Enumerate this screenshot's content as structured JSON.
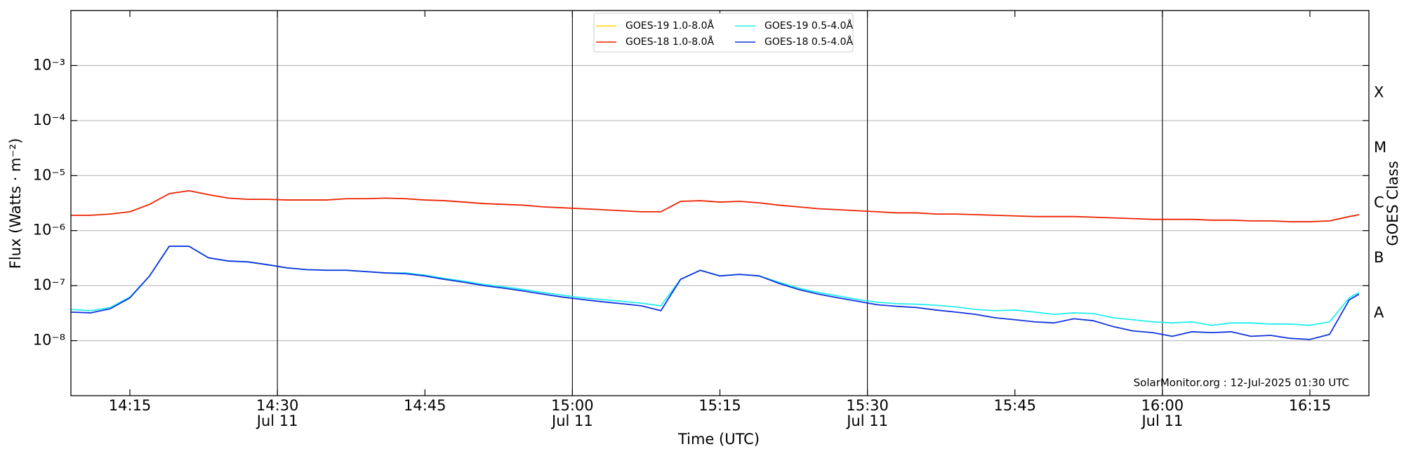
{
  "chart_data": {
    "type": "line",
    "ylabel": "Flux (Watts · m⁻²)",
    "xlabel": "Time (UTC)",
    "y2label": "GOES Class",
    "annotation": "SolarMonitor.org : 12-Jul-2025 01:30 UTC",
    "log_scale": true,
    "grid": true,
    "legend": "upper center",
    "x": [
      "14:09",
      "14:11",
      "14:13",
      "14:15",
      "14:17",
      "14:19",
      "14:21",
      "14:23",
      "14:25",
      "14:27",
      "14:29",
      "14:31",
      "14:33",
      "14:35",
      "14:37",
      "14:39",
      "14:41",
      "14:43",
      "14:45",
      "14:47",
      "14:49",
      "14:51",
      "14:53",
      "14:55",
      "14:57",
      "14:59",
      "15:01",
      "15:03",
      "15:05",
      "15:07",
      "15:09",
      "15:11",
      "15:13",
      "15:15",
      "15:17",
      "15:19",
      "15:21",
      "15:23",
      "15:25",
      "15:27",
      "15:29",
      "15:31",
      "15:33",
      "15:35",
      "15:37",
      "15:39",
      "15:41",
      "15:43",
      "15:45",
      "15:47",
      "15:49",
      "15:51",
      "15:53",
      "15:55",
      "15:57",
      "15:59",
      "16:01",
      "16:03",
      "16:05",
      "16:07",
      "16:09",
      "16:11",
      "16:13",
      "16:15",
      "16:17",
      "16:19",
      "16:20"
    ],
    "xlim": [
      "14:09",
      "16:21"
    ],
    "xticks": [
      "14:15",
      {
        "value": "14:30",
        "label": "14:30",
        "date": "Jul 11"
      },
      "14:45",
      {
        "value": "15:00",
        "label": "15:00",
        "date": "Jul 11"
      },
      "15:15",
      {
        "value": "15:30",
        "label": "15:30",
        "date": "Jul 11"
      },
      "15:45",
      {
        "value": "16:00",
        "label": "16:00",
        "date": "Jul 11"
      },
      "16:15"
    ],
    "ylim": [
      1e-09,
      0.01
    ],
    "yticks": [
      {
        "value": 1e-08,
        "label": "10⁻⁸"
      },
      {
        "value": 1e-07,
        "label": "10⁻⁷"
      },
      {
        "value": 1e-06,
        "label": "10⁻⁶"
      },
      {
        "value": 1e-05,
        "label": "10⁻⁵"
      },
      {
        "value": 0.0001,
        "label": "10⁻⁴"
      },
      {
        "value": 0.001,
        "label": "10⁻³"
      }
    ],
    "y2lim": [
      1e-09,
      0.01
    ],
    "y2ticks": [
      {
        "value": 3.16e-08,
        "label": "A"
      },
      {
        "value": 3.16e-07,
        "label": "B"
      },
      {
        "value": 3.16e-06,
        "label": "C"
      },
      {
        "value": 3.16e-05,
        "label": "M"
      },
      {
        "value": 0.000316,
        "label": "X"
      }
    ],
    "series": [
      {
        "name": "GOES-19 1.0-8.0Å",
        "color": "#ffd700",
        "values": [
          null,
          null,
          null,
          null,
          null,
          null,
          null,
          null,
          null,
          null,
          null,
          null,
          null,
          null,
          null,
          null,
          null,
          null,
          null,
          null,
          null,
          null,
          null,
          null,
          null,
          null,
          null,
          null,
          null,
          null,
          null,
          null,
          null,
          null,
          null,
          null,
          null,
          null,
          null,
          null,
          null,
          null,
          null,
          null,
          null,
          null,
          null,
          null,
          null,
          null,
          null,
          null,
          null,
          null,
          null,
          null,
          null,
          null,
          null,
          null,
          null,
          null,
          null,
          null,
          null,
          null,
          null
        ]
      },
      {
        "name": "GOES-18 1.0-8.0Å",
        "color": "#ee2200",
        "values": [
          1.9e-06,
          1.9e-06,
          2e-06,
          2.2e-06,
          3e-06,
          4.7e-06,
          5.3e-06,
          4.5e-06,
          3.9e-06,
          3.7e-06,
          3.7e-06,
          3.6e-06,
          3.6e-06,
          3.6e-06,
          3.8e-06,
          3.8e-06,
          3.9e-06,
          3.8e-06,
          3.6e-06,
          3.5e-06,
          3.3e-06,
          3.1e-06,
          3e-06,
          2.9e-06,
          2.7e-06,
          2.6e-06,
          2.5e-06,
          2.4e-06,
          2.3e-06,
          2.2e-06,
          2.2e-06,
          3.4e-06,
          3.5e-06,
          3.3e-06,
          3.4e-06,
          3.2e-06,
          2.9e-06,
          2.7e-06,
          2.5e-06,
          2.4e-06,
          2.3e-06,
          2.2e-06,
          2.1e-06,
          2.1e-06,
          2e-06,
          2e-06,
          1.95e-06,
          1.9e-06,
          1.85e-06,
          1.8e-06,
          1.8e-06,
          1.8e-06,
          1.75e-06,
          1.7e-06,
          1.65e-06,
          1.6e-06,
          1.6e-06,
          1.6e-06,
          1.55e-06,
          1.55e-06,
          1.5e-06,
          1.5e-06,
          1.45e-06,
          1.45e-06,
          1.5e-06,
          1.8e-06,
          1.95e-06
        ]
      },
      {
        "name": "GOES-19 0.5-4.0Å",
        "color": "#22eeee",
        "values": [
          3.7e-08,
          3.5e-08,
          4e-08,
          6.2e-08,
          1.5e-07,
          5.2e-07,
          5.2e-07,
          3.2e-07,
          2.8e-07,
          2.7e-07,
          2.4e-07,
          2.1e-07,
          1.95e-07,
          1.9e-07,
          1.9e-07,
          1.8e-07,
          1.7e-07,
          1.7e-07,
          1.55e-07,
          1.35e-07,
          1.2e-07,
          1.05e-07,
          9.5e-08,
          8.5e-08,
          7.5e-08,
          6.7e-08,
          6e-08,
          5.6e-08,
          5.2e-08,
          4.8e-08,
          4.3e-08,
          1.3e-07,
          1.9e-07,
          1.5e-07,
          1.6e-07,
          1.5e-07,
          1.15e-07,
          9e-08,
          7.5e-08,
          6.5e-08,
          5.6e-08,
          5e-08,
          4.7e-08,
          4.6e-08,
          4.4e-08,
          4.1e-08,
          3.7e-08,
          3.5e-08,
          3.6e-08,
          3.3e-08,
          3e-08,
          3.2e-08,
          3.1e-08,
          2.6e-08,
          2.4e-08,
          2.2e-08,
          2.1e-08,
          2.2e-08,
          1.9e-08,
          2.1e-08,
          2.1e-08,
          2e-08,
          2e-08,
          1.9e-08,
          2.2e-08,
          6e-08,
          7.5e-08
        ]
      },
      {
        "name": "GOES-18 0.5-4.0Å",
        "color": "#1133dd",
        "values": [
          3.3e-08,
          3.2e-08,
          3.8e-08,
          6e-08,
          1.5e-07,
          5.2e-07,
          5.2e-07,
          3.2e-07,
          2.8e-07,
          2.7e-07,
          2.4e-07,
          2.1e-07,
          1.95e-07,
          1.9e-07,
          1.9e-07,
          1.8e-07,
          1.7e-07,
          1.65e-07,
          1.5e-07,
          1.3e-07,
          1.15e-07,
          1e-07,
          9e-08,
          8e-08,
          7e-08,
          6.2e-08,
          5.6e-08,
          5.1e-08,
          4.7e-08,
          4.3e-08,
          3.5e-08,
          1.3e-07,
          1.9e-07,
          1.5e-07,
          1.6e-07,
          1.5e-07,
          1.1e-07,
          8.5e-08,
          7e-08,
          6e-08,
          5.2e-08,
          4.5e-08,
          4.2e-08,
          4e-08,
          3.6e-08,
          3.3e-08,
          3e-08,
          2.6e-08,
          2.4e-08,
          2.2e-08,
          2.1e-08,
          2.5e-08,
          2.3e-08,
          1.8e-08,
          1.5e-08,
          1.4e-08,
          1.2e-08,
          1.45e-08,
          1.4e-08,
          1.45e-08,
          1.2e-08,
          1.25e-08,
          1.1e-08,
          1.05e-08,
          1.3e-08,
          5.5e-08,
          7e-08
        ]
      }
    ]
  }
}
